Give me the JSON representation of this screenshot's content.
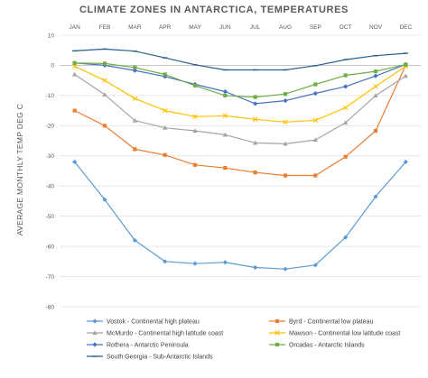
{
  "chart_data": {
    "type": "line",
    "title": "CLIMATE ZONES IN ANTARCTICA, TEMPERATURES",
    "xlabel": "",
    "ylabel": "AVERAGE MONTHLY TEMP DEG C",
    "categories": [
      "JAN",
      "FEB",
      "MAR",
      "APR",
      "MAY",
      "JUN",
      "JUL",
      "AUG",
      "SEP",
      "OCT",
      "NOV",
      "DEC"
    ],
    "ylim": [
      -80,
      10
    ],
    "yticks": [
      10,
      0,
      -10,
      -20,
      -30,
      -40,
      -50,
      -60,
      -70,
      -80
    ],
    "grid": true,
    "legend_position": "bottom",
    "series": [
      {
        "name": "Vostok - Continental high plateau",
        "color": "#5b9bd5",
        "marker": "diamond",
        "values": [
          -32,
          -44.5,
          -58,
          -65,
          -65.7,
          -65.3,
          -67,
          -67.5,
          -66.2,
          -57,
          -43.5,
          -32
        ]
      },
      {
        "name": "Byrd - Continental low plateau",
        "color": "#ed7d31",
        "marker": "square",
        "values": [
          -15,
          -20,
          -27.8,
          -29.7,
          -33,
          -34,
          -35.5,
          -36.5,
          -36.5,
          -30.3,
          -21.7,
          0
        ]
      },
      {
        "name": "McMurdo - Continental high latitude coast",
        "color": "#a5a5a5",
        "marker": "triangle",
        "values": [
          -3,
          -9.7,
          -18.3,
          -20.7,
          -21.7,
          -23,
          -25.7,
          -26,
          -24.7,
          -19,
          -10,
          -3.5
        ]
      },
      {
        "name": "Mawson - Continental low latitude coast",
        "color": "#ffc000",
        "marker": "x",
        "values": [
          -0.3,
          -5,
          -11,
          -15,
          -17,
          -16.7,
          -17.9,
          -18.8,
          -18.2,
          -14,
          -7,
          -0.3
        ]
      },
      {
        "name": "Rothera - Antarctic Peninsula",
        "color": "#4472c4",
        "marker": "diamond",
        "values": [
          0.8,
          0,
          -1.7,
          -3.7,
          -6.3,
          -8.7,
          -12.7,
          -11.7,
          -9.3,
          -7,
          -3.5,
          0.3
        ]
      },
      {
        "name": "Orcadas - Antarctic Islands",
        "color": "#70ad47",
        "marker": "square",
        "values": [
          0.8,
          0.6,
          -0.7,
          -3,
          -6.7,
          -10,
          -10.5,
          -9.5,
          -6.3,
          -3.3,
          -2,
          0.3
        ]
      },
      {
        "name": "South Georgia - Sub-Antarctic Islands",
        "color": "#255e91",
        "marker": "dash",
        "values": [
          4.8,
          5.4,
          4.7,
          2.5,
          0.2,
          -1.5,
          -1.5,
          -1.5,
          -0.1,
          1.9,
          3.2,
          4
        ]
      }
    ]
  }
}
